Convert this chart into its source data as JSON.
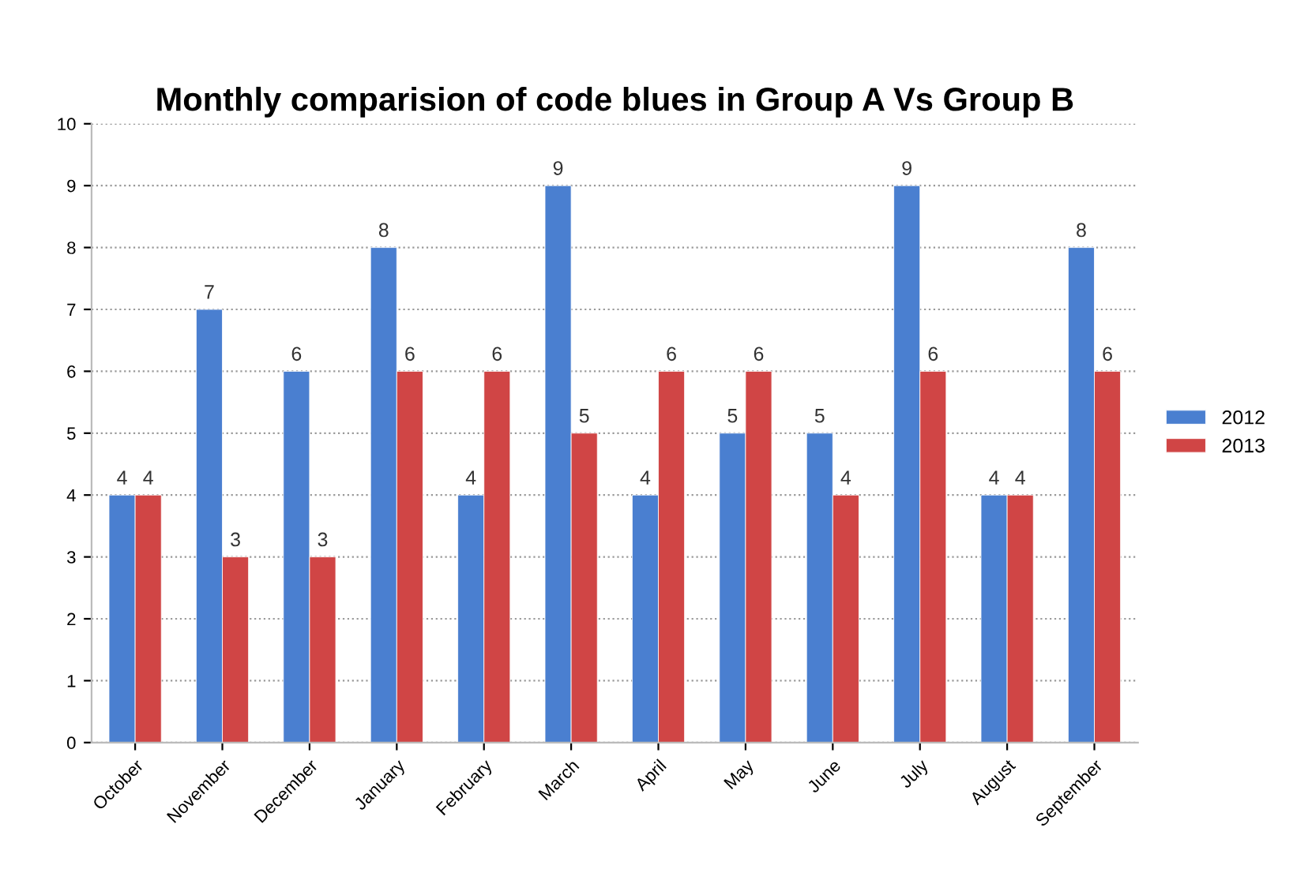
{
  "chart_data": {
    "type": "bar",
    "title": "Monthly comparision of code blues in Group A Vs Group B",
    "categories": [
      "October",
      "November",
      "December",
      "January",
      "February",
      "March",
      "April",
      "May",
      "June",
      "July",
      "August",
      "September"
    ],
    "series": [
      {
        "name": "2012",
        "color": "#4a7fd0",
        "values": [
          4,
          7,
          6,
          8,
          4,
          9,
          4,
          5,
          5,
          9,
          4,
          8
        ]
      },
      {
        "name": "2013",
        "color": "#d04545",
        "values": [
          4,
          3,
          3,
          6,
          6,
          5,
          6,
          6,
          4,
          6,
          4,
          6
        ]
      }
    ],
    "ylim": [
      0,
      10
    ],
    "yticks": [
      0,
      1,
      2,
      3,
      4,
      5,
      6,
      7,
      8,
      9,
      10
    ],
    "grid": "y",
    "legend": "right",
    "data_labels": true
  }
}
